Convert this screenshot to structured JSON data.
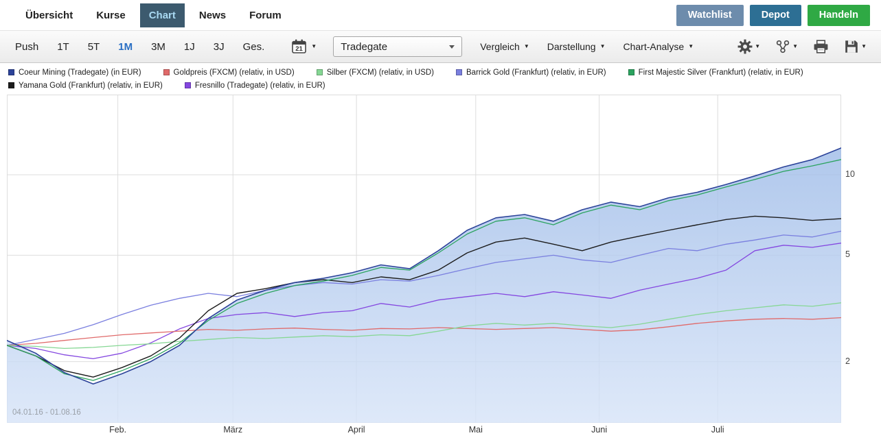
{
  "nav": {
    "items": [
      {
        "label": "Übersicht",
        "active": false
      },
      {
        "label": "Kurse",
        "active": false
      },
      {
        "label": "Chart",
        "active": true
      },
      {
        "label": "News",
        "active": false
      },
      {
        "label": "Forum",
        "active": false
      }
    ],
    "buttons": [
      {
        "label": "Watchlist",
        "color": "#6d8cac"
      },
      {
        "label": "Depot",
        "color": "#2d6f94"
      },
      {
        "label": "Handeln",
        "color": "#2fa944"
      }
    ]
  },
  "toolbar": {
    "periods": [
      "Push",
      "1T",
      "5T",
      "1M",
      "3M",
      "1J",
      "3J",
      "Ges."
    ],
    "active_period": "1M",
    "calendar_day": "21",
    "exchange_select": "Tradegate",
    "dropdowns": [
      "Vergleich",
      "Darstellung",
      "Chart-Analyse"
    ],
    "icons": {
      "calendar": "calendar-with-day",
      "gear": "settings-gear",
      "indicators": "node-graph",
      "printer": "printer",
      "save": "floppy-disk",
      "caret_glyph": "▼"
    }
  },
  "legend": {
    "rows": [
      [
        {
          "label": "Coeur Mining (Tradegate) (in EUR)",
          "color": "#2c4399"
        },
        {
          "label": "Goldpreis (FXCM) (relativ, in USD)",
          "color": "#e06a6a"
        },
        {
          "label": "Silber (FXCM) (relativ, in USD)",
          "color": "#86d794"
        },
        {
          "label": "Barrick Gold (Frankfurt) (relativ, in EUR)",
          "color": "#7a7fdf"
        },
        {
          "label": "First Majestic Silver (Frankfurt) (relativ, in EUR)",
          "color": "#2ba35f"
        }
      ],
      [
        {
          "label": "Yamana Gold (Frankfurt) (relativ, in EUR)",
          "color": "#1c1c1c"
        },
        {
          "label": "Fresnillo (Tradegate) (relativ, in EUR)",
          "color": "#8447e0"
        }
      ]
    ]
  },
  "chart_data": {
    "type": "line",
    "date_range_label": "04.01.16 - 01.08.16",
    "x_axis": {
      "month_labels": [
        "Feb.",
        "März",
        "April",
        "Mai",
        "Juni",
        "Juli"
      ],
      "month_fractions": [
        0.133,
        0.271,
        0.419,
        0.562,
        0.71,
        0.852
      ]
    },
    "y_axis": {
      "scale": "log",
      "ticks": [
        10,
        5,
        2
      ],
      "side": "right",
      "range_approx": [
        1.2,
        20
      ]
    },
    "fill_gradient": [
      "#9fbce8",
      "#d7e4f8"
    ],
    "series": [
      {
        "name": "Barrick Gold (Frankfurt) (relativ, in EUR)",
        "color": "#7a7fdf",
        "width": 1.3,
        "values": [
          2.3,
          2.42,
          2.55,
          2.75,
          3.0,
          3.25,
          3.45,
          3.6,
          3.5,
          3.7,
          3.85,
          3.95,
          3.9,
          4.05,
          4.0,
          4.2,
          4.45,
          4.7,
          4.85,
          5.0,
          4.8,
          4.7,
          5.0,
          5.3,
          5.2,
          5.5,
          5.7,
          5.95,
          5.85,
          6.15
        ]
      },
      {
        "name": "Fresnillo (Tradegate) (relativ, in EUR)",
        "color": "#8447e0",
        "width": 1.3,
        "values": [
          2.3,
          2.24,
          2.12,
          2.05,
          2.15,
          2.35,
          2.65,
          2.9,
          3.0,
          3.05,
          2.95,
          3.05,
          3.1,
          3.3,
          3.2,
          3.4,
          3.5,
          3.6,
          3.5,
          3.65,
          3.55,
          3.45,
          3.7,
          3.9,
          4.1,
          4.4,
          5.2,
          5.45,
          5.35,
          5.55
        ]
      },
      {
        "name": "Goldpreis (FXCM) (relativ, in USD)",
        "color": "#e06a6a",
        "width": 1.3,
        "values": [
          2.3,
          2.34,
          2.4,
          2.46,
          2.52,
          2.56,
          2.6,
          2.64,
          2.62,
          2.65,
          2.67,
          2.64,
          2.62,
          2.66,
          2.65,
          2.68,
          2.66,
          2.64,
          2.66,
          2.68,
          2.64,
          2.6,
          2.63,
          2.7,
          2.78,
          2.84,
          2.88,
          2.9,
          2.88,
          2.92
        ]
      },
      {
        "name": "Silber (FXCM) (relativ, in USD)",
        "color": "#86d794",
        "width": 1.3,
        "values": [
          2.3,
          2.28,
          2.24,
          2.26,
          2.3,
          2.33,
          2.38,
          2.42,
          2.46,
          2.44,
          2.47,
          2.5,
          2.48,
          2.52,
          2.5,
          2.6,
          2.72,
          2.78,
          2.74,
          2.78,
          2.72,
          2.68,
          2.76,
          2.88,
          3.0,
          3.1,
          3.18,
          3.26,
          3.22,
          3.32
        ]
      },
      {
        "name": "Yamana Gold (Frankfurt) (relativ, in EUR)",
        "color": "#1c1c1c",
        "width": 1.4,
        "values": [
          2.3,
          2.1,
          1.85,
          1.75,
          1.9,
          2.1,
          2.45,
          3.1,
          3.6,
          3.75,
          3.95,
          4.05,
          3.95,
          4.15,
          4.05,
          4.4,
          5.1,
          5.6,
          5.8,
          5.5,
          5.2,
          5.6,
          5.9,
          6.2,
          6.5,
          6.8,
          7.0,
          6.9,
          6.75,
          6.85
        ]
      },
      {
        "name": "First Majestic Silver (Frankfurt) (relativ, in EUR)",
        "color": "#2ba35f",
        "width": 1.3,
        "values": [
          2.3,
          2.1,
          1.8,
          1.7,
          1.85,
          2.05,
          2.35,
          2.85,
          3.3,
          3.6,
          3.85,
          4.0,
          4.2,
          4.5,
          4.4,
          5.1,
          6.0,
          6.7,
          6.9,
          6.5,
          7.2,
          7.7,
          7.4,
          8.0,
          8.4,
          9.0,
          9.6,
          10.3,
          10.8,
          11.4
        ]
      },
      {
        "name": "Coeur Mining (Tradegate) (in EUR)",
        "color": "#2c4399",
        "width": 1.6,
        "fill": true,
        "values": [
          2.4,
          2.15,
          1.82,
          1.65,
          1.8,
          2.0,
          2.3,
          2.9,
          3.4,
          3.7,
          3.95,
          4.1,
          4.3,
          4.6,
          4.45,
          5.2,
          6.2,
          6.9,
          7.1,
          6.7,
          7.4,
          7.9,
          7.6,
          8.2,
          8.6,
          9.2,
          9.9,
          10.7,
          11.4,
          12.6
        ]
      }
    ]
  }
}
